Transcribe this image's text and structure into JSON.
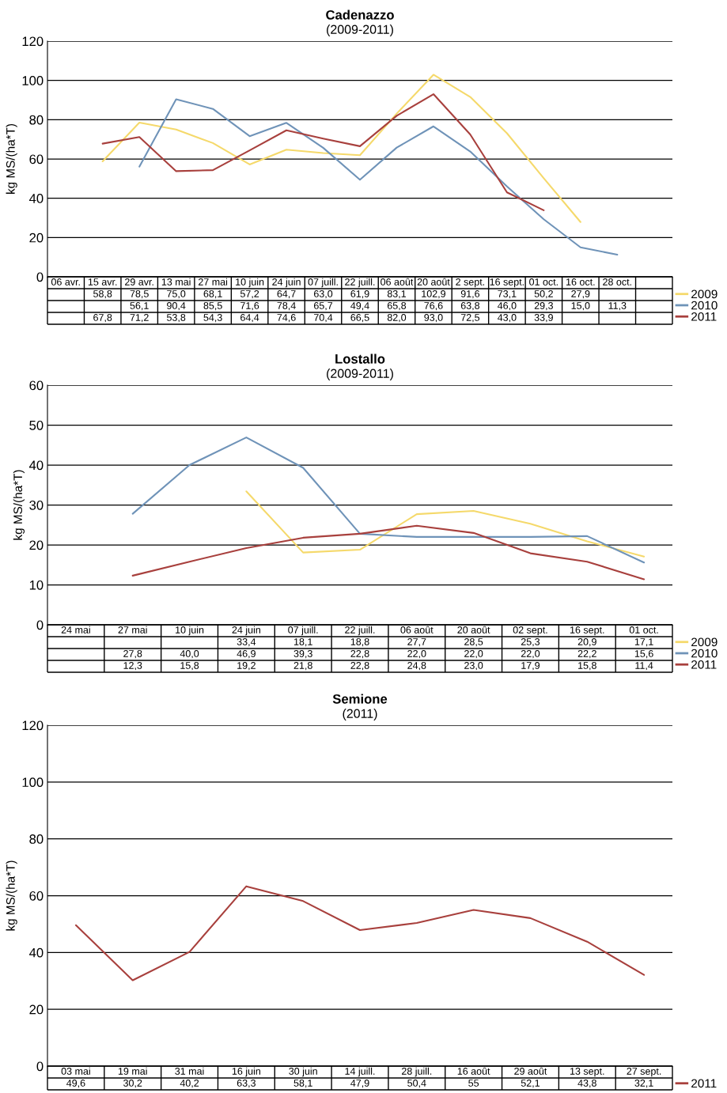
{
  "chart_data": [
    {
      "type": "line",
      "title": "Cadenazzo",
      "subtitle": "(2009-2011)",
      "ylabel": "kg MS/(ha*T)",
      "ylim": [
        0,
        120
      ],
      "yticks": [
        0,
        20,
        40,
        60,
        80,
        100,
        120
      ],
      "grid": "y",
      "legend": "bottom right",
      "categories": [
        "06 avr.",
        "15 avr.",
        "29 avr.",
        "13 mai",
        "27 mai",
        "10 juin",
        "24 juin",
        "07 juill.",
        "22 juill.",
        "06 août",
        "20 août",
        "2 sept.",
        "16 sept.",
        "01 oct.",
        "16 oct.",
        "28 oct.",
        null
      ],
      "series": [
        {
          "name": "2009",
          "color": "#f5d96b",
          "values": [
            null,
            58.8,
            78.5,
            75.0,
            68.1,
            57.2,
            64.7,
            63.0,
            61.9,
            83.1,
            102.9,
            91.6,
            73.1,
            50.2,
            27.9,
            null,
            null
          ],
          "value_labels": [
            null,
            "58,8",
            "78,5",
            "75,0",
            "68,1",
            "57,2",
            "64,7",
            "63,0",
            "61,9",
            "83,1",
            "102,9",
            "91,6",
            "73,1",
            "50,2",
            "27,9",
            null,
            null
          ]
        },
        {
          "name": "2010",
          "color": "#6f93b8",
          "values": [
            null,
            null,
            56.1,
            90.4,
            85.5,
            71.6,
            78.4,
            65.7,
            49.4,
            65.8,
            76.6,
            63.8,
            46.0,
            29.3,
            15.0,
            11.3,
            null
          ],
          "value_labels": [
            null,
            null,
            "56,1",
            "90,4",
            "85,5",
            "71,6",
            "78,4",
            "65,7",
            "49,4",
            "65,8",
            "76,6",
            "63,8",
            "46,0",
            "29,3",
            "15,0",
            "11,3",
            null
          ]
        },
        {
          "name": "2011",
          "color": "#a8403d",
          "values": [
            null,
            67.8,
            71.2,
            53.8,
            54.3,
            64.4,
            74.6,
            70.4,
            66.5,
            82.0,
            93.0,
            72.5,
            43.0,
            33.9,
            null,
            null,
            null
          ],
          "value_labels": [
            null,
            "67,8",
            "71,2",
            "53,8",
            "54,3",
            "64,4",
            "74,6",
            "70,4",
            "66,5",
            "82,0",
            "93,0",
            "72,5",
            "43,0",
            "33,9",
            null,
            null,
            null
          ]
        }
      ]
    },
    {
      "type": "line",
      "title": "Lostallo",
      "subtitle": "(2009-2011)",
      "ylabel": "kg MS/(ha*T)",
      "ylim": [
        0,
        60
      ],
      "yticks": [
        0,
        10,
        20,
        30,
        40,
        50,
        60
      ],
      "grid": "y",
      "legend": "bottom right",
      "categories": [
        "24 mai",
        "27 mai",
        "10 juin",
        "24 juin",
        "07 juill.",
        "22 juill.",
        "06 août",
        "20 août",
        "02 sept.",
        "16 sept.",
        "01 oct."
      ],
      "series": [
        {
          "name": "2009",
          "color": "#f5d96b",
          "values": [
            null,
            null,
            null,
            33.4,
            18.1,
            18.8,
            27.7,
            28.5,
            25.3,
            20.9,
            17.1
          ],
          "value_labels": [
            null,
            null,
            null,
            "33,4",
            "18,1",
            "18,8",
            "27,7",
            "28,5",
            "25,3",
            "20,9",
            "17,1"
          ]
        },
        {
          "name": "2010",
          "color": "#6f93b8",
          "values": [
            null,
            27.8,
            40.0,
            46.9,
            39.3,
            22.8,
            22.0,
            22.0,
            22.0,
            22.2,
            15.6
          ],
          "value_labels": [
            null,
            "27,8",
            "40,0",
            "46,9",
            "39,3",
            "22,8",
            "22,0",
            "22,0",
            "22,0",
            "22,2",
            "15,6"
          ]
        },
        {
          "name": "2011",
          "color": "#a8403d",
          "values": [
            null,
            12.3,
            15.8,
            19.2,
            21.8,
            22.8,
            24.8,
            23.0,
            17.9,
            15.8,
            11.4
          ],
          "value_labels": [
            null,
            "12,3",
            "15,8",
            "19,2",
            "21,8",
            "22,8",
            "24,8",
            "23,0",
            "17,9",
            "15,8",
            "11,4"
          ]
        }
      ]
    },
    {
      "type": "line",
      "title": "Semione",
      "subtitle": "(2011)",
      "ylabel": "kg MS/(ha*T)",
      "ylim": [
        0,
        120
      ],
      "yticks": [
        0,
        20,
        40,
        60,
        80,
        100,
        120
      ],
      "grid": "y",
      "legend": "bottom right",
      "categories": [
        "03 mai",
        "19 mai",
        "31 mai",
        "16 juin",
        "30 juin",
        "14 juill.",
        "28 juill.",
        "16 août",
        "29 août",
        "13 sept.",
        "27 sept."
      ],
      "series": [
        {
          "name": "2011",
          "color": "#a8403d",
          "values": [
            49.6,
            30.2,
            40.2,
            63.3,
            58.1,
            47.9,
            50.4,
            55,
            52.1,
            43.8,
            32.1
          ],
          "value_labels": [
            "49,6",
            "30,2",
            "40,2",
            "63,3",
            "58,1",
            "47,9",
            "50,4",
            "55",
            "52,1",
            "43,8",
            "32,1"
          ]
        }
      ]
    }
  ]
}
